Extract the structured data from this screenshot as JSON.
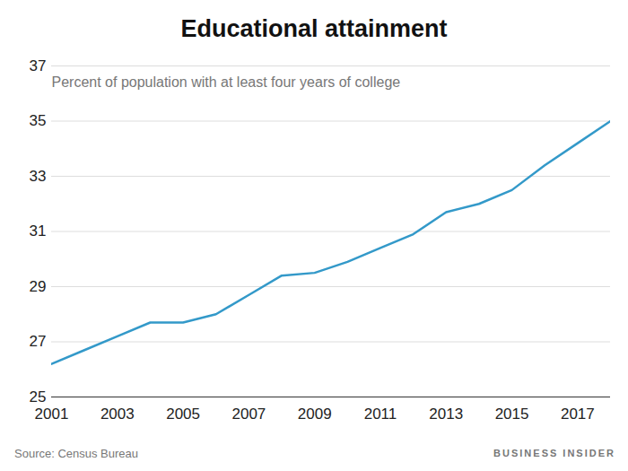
{
  "chart_data": {
    "type": "line",
    "title": "Educational attainment",
    "subtitle": "Percent of population with at least four years of college",
    "caption": "Source: Census Bureau",
    "credit": "BUSINESS INSIDER",
    "x": [
      2001,
      2002,
      2003,
      2004,
      2005,
      2006,
      2007,
      2008,
      2009,
      2010,
      2011,
      2012,
      2013,
      2014,
      2015,
      2016,
      2017,
      2018
    ],
    "values": [
      26.2,
      26.7,
      27.2,
      27.7,
      27.7,
      28.0,
      28.7,
      29.4,
      29.5,
      29.9,
      30.4,
      30.9,
      31.7,
      32.0,
      32.5,
      33.4,
      34.2,
      35.0
    ],
    "color": "#3399c9",
    "xlim": [
      2001,
      2018
    ],
    "xticks": [
      2001,
      2003,
      2005,
      2007,
      2009,
      2011,
      2013,
      2015,
      2017
    ],
    "ylim": [
      25,
      37
    ],
    "yticks": [
      25,
      27,
      29,
      31,
      33,
      35,
      37
    ],
    "grid": true
  }
}
